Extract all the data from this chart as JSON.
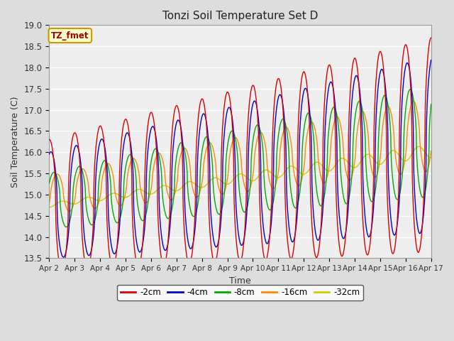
{
  "title": "Tonzi Soil Temperature Set D",
  "xlabel": "Time",
  "ylabel": "Soil Temperature (C)",
  "ylim": [
    13.5,
    19.0
  ],
  "yticks": [
    13.5,
    14.0,
    14.5,
    15.0,
    15.5,
    16.0,
    16.5,
    17.0,
    17.5,
    18.0,
    18.5,
    19.0
  ],
  "xtick_labels": [
    "Apr 2",
    "Apr 3",
    "Apr 4",
    "Apr 5",
    "Apr 6",
    "Apr 7",
    "Apr 8",
    "Apr 9",
    "Apr 10",
    "Apr 11",
    "Apr 12",
    "Apr 13",
    "Apr 14",
    "Apr 15",
    "Apr 16",
    "Apr 17"
  ],
  "series_colors": [
    "#dd0000",
    "#0000cc",
    "#00aa00",
    "#ff8800",
    "#cccc00"
  ],
  "series_labels": [
    "-2cm",
    "-4cm",
    "-8cm",
    "-16cm",
    "-32cm"
  ],
  "legend_box_color": "#ffffcc",
  "legend_box_edge": "#cc9900",
  "annotation_text": "TZ_fmet",
  "annotation_color": "#aa0000",
  "annotation_bg": "#ffffcc",
  "annotation_border": "#cc9900",
  "background_color": "#dddddd",
  "plot_bg_color": "#eeeeee",
  "grid_color": "#ffffff",
  "n_days": 15,
  "points_per_day": 96
}
